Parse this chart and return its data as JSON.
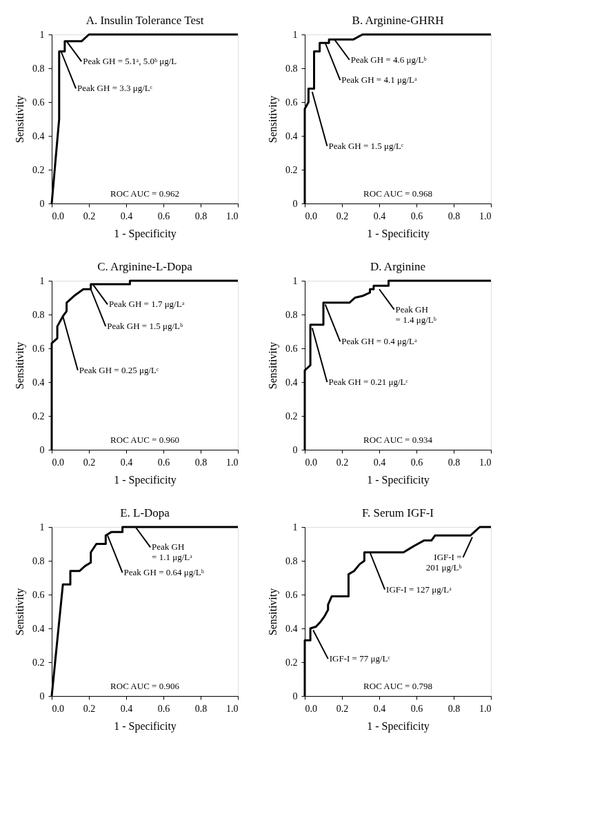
{
  "chart_data": [
    {
      "type": "line",
      "title": "A.  Insulin Tolerance Test",
      "xlabel": "1 - Specificity",
      "ylabel": "Sensitivity",
      "x": [
        0,
        0.04,
        0.04,
        0.07,
        0.07,
        0.16,
        0.2,
        1
      ],
      "series": [
        {
          "color": "#000000",
          "values": [
            0,
            0.5,
            0.9,
            0.9,
            0.96,
            0.96,
            1,
            1
          ]
        }
      ],
      "xlim": [
        0,
        1
      ],
      "ylim": [
        0,
        1
      ],
      "xticks": [
        {
          "value": 0,
          "label": "0.0"
        },
        {
          "value": 0.2,
          "label": "0.2"
        },
        {
          "value": 0.4,
          "label": "0.4"
        },
        {
          "value": 0.6,
          "label": "0.6"
        },
        {
          "value": 0.8,
          "label": "0.8"
        },
        {
          "value": 1,
          "label": "1.0"
        }
      ],
      "yticks": [
        0,
        0.2,
        0.4,
        0.6,
        0.8,
        1
      ],
      "grid": false,
      "annotations": [
        {
          "text": "Peak GH = 5.1ᵃ, 5.0ᵇ μg/L",
          "x": 0.08,
          "y": 0.96
        },
        {
          "text": "Peak GH = 3.3 μg/Lᶜ",
          "x": 0.05,
          "y": 0.9
        },
        "ROC AUC = 0.962"
      ]
    },
    {
      "type": "line",
      "title": "B.  Arginine-GHRH",
      "xlabel": "1 - Specificity",
      "ylabel": "Sensitivity",
      "x": [
        0,
        0,
        0.02,
        0.02,
        0.05,
        0.05,
        0.08,
        0.08,
        0.13,
        0.13,
        0.26,
        0.31,
        1
      ],
      "series": [
        {
          "color": "#000000",
          "values": [
            0,
            0.56,
            0.6,
            0.68,
            0.68,
            0.9,
            0.9,
            0.95,
            0.95,
            0.97,
            0.97,
            1,
            1
          ]
        }
      ],
      "xlim": [
        0,
        1
      ],
      "ylim": [
        0,
        1
      ],
      "xticks": [
        {
          "value": 0,
          "label": "0.0"
        },
        {
          "value": 0.2,
          "label": "0.2"
        },
        {
          "value": 0.4,
          "label": "0.4"
        },
        {
          "value": 0.6,
          "label": "0.6"
        },
        {
          "value": 0.8,
          "label": "0.8"
        },
        {
          "value": 1,
          "label": "1.0"
        }
      ],
      "yticks": [
        0,
        0.2,
        0.4,
        0.6,
        0.8,
        1
      ],
      "grid": false,
      "annotations": [
        {
          "text": "Peak GH = 4.6 μg/Lᵇ",
          "x": 0.16,
          "y": 0.97
        },
        {
          "text": "Peak GH = 4.1 μg/Lᵃ",
          "x": 0.11,
          "y": 0.95
        },
        {
          "text": "Peak GH = 1.5 μg/Lᶜ",
          "x": 0.04,
          "y": 0.66
        },
        "ROC AUC = 0.968"
      ]
    },
    {
      "type": "line",
      "title": "C.  Arginine-L-Dopa",
      "xlabel": "1 - Specificity",
      "ylabel": "Sensitivity",
      "x": [
        0,
        0,
        0.03,
        0.03,
        0.05,
        0.06,
        0.08,
        0.08,
        0.12,
        0.17,
        0.21,
        0.21,
        0.42,
        0.42,
        1
      ],
      "series": [
        {
          "color": "#000000",
          "values": [
            0,
            0.63,
            0.66,
            0.73,
            0.77,
            0.79,
            0.82,
            0.87,
            0.91,
            0.95,
            0.95,
            0.98,
            0.98,
            1,
            1
          ]
        }
      ],
      "xlim": [
        0,
        1
      ],
      "ylim": [
        0,
        1
      ],
      "xticks": [
        {
          "value": 0,
          "label": "0.0"
        },
        {
          "value": 0.2,
          "label": "0.2"
        },
        {
          "value": 0.4,
          "label": "0.4"
        },
        {
          "value": 0.6,
          "label": "0.6"
        },
        {
          "value": 0.8,
          "label": "0.8"
        },
        {
          "value": 1,
          "label": "1.0"
        }
      ],
      "yticks": [
        0,
        0.2,
        0.4,
        0.6,
        0.8,
        1
      ],
      "grid": false,
      "annotations": [
        {
          "text": "Peak GH = 1.7 μg/Lᵃ",
          "x": 0.22,
          "y": 0.98
        },
        {
          "text": "Peak GH = 1.5 μg/Lᵇ",
          "x": 0.21,
          "y": 0.95
        },
        {
          "text": "Peak GH = 0.25 μg/Lᶜ",
          "x": 0.06,
          "y": 0.79
        },
        "ROC AUC = 0.960"
      ]
    },
    {
      "type": "line",
      "title": "D.  Arginine",
      "xlabel": "1 - Specificity",
      "ylabel": "Sensitivity",
      "x": [
        0,
        0,
        0.03,
        0.03,
        0.1,
        0.1,
        0.24,
        0.27,
        0.31,
        0.35,
        0.35,
        0.37,
        0.37,
        0.45,
        0.45,
        1
      ],
      "series": [
        {
          "color": "#000000",
          "values": [
            0,
            0.47,
            0.5,
            0.74,
            0.74,
            0.87,
            0.87,
            0.9,
            0.91,
            0.93,
            0.95,
            0.95,
            0.97,
            0.97,
            1,
            1
          ]
        }
      ],
      "xlim": [
        0,
        1
      ],
      "ylim": [
        0,
        1
      ],
      "xticks": [
        {
          "value": 0,
          "label": "0.0"
        },
        {
          "value": 0.2,
          "label": "0.2"
        },
        {
          "value": 0.4,
          "label": "0.4"
        },
        {
          "value": 0.6,
          "label": "0.6"
        },
        {
          "value": 0.8,
          "label": "0.8"
        },
        {
          "value": 1,
          "label": "1.0"
        }
      ],
      "yticks": [
        0,
        0.2,
        0.4,
        0.6,
        0.8,
        1
      ],
      "grid": false,
      "annotations": [
        {
          "text": "Peak GH\n= 1.4 μg/Lᵇ",
          "x": 0.4,
          "y": 0.95
        },
        {
          "text": "Peak GH = 0.4 μg/Lᵃ",
          "x": 0.11,
          "y": 0.86
        },
        {
          "text": "Peak GH = 0.21 μg/Lᶜ",
          "x": 0.04,
          "y": 0.72
        },
        "ROC AUC = 0.934"
      ]
    },
    {
      "type": "line",
      "title": "E.  L-Dopa",
      "xlabel": "1 - Specificity",
      "ylabel": "Sensitivity",
      "x": [
        0,
        0.06,
        0.1,
        0.1,
        0.15,
        0.18,
        0.21,
        0.21,
        0.24,
        0.29,
        0.29,
        0.32,
        0.38,
        0.38,
        1
      ],
      "series": [
        {
          "color": "#000000",
          "values": [
            0,
            0.66,
            0.66,
            0.74,
            0.74,
            0.77,
            0.79,
            0.85,
            0.9,
            0.9,
            0.95,
            0.97,
            0.97,
            1,
            1
          ]
        }
      ],
      "xlim": [
        0,
        1
      ],
      "ylim": [
        0,
        1
      ],
      "xticks": [
        {
          "value": 0,
          "label": "0.0"
        },
        {
          "value": 0.2,
          "label": "0.2"
        },
        {
          "value": 0.4,
          "label": "0.4"
        },
        {
          "value": 0.6,
          "label": "0.6"
        },
        {
          "value": 0.8,
          "label": "0.8"
        },
        {
          "value": 1,
          "label": "1.0"
        }
      ],
      "yticks": [
        0,
        0.2,
        0.4,
        0.6,
        0.8,
        1
      ],
      "grid": false,
      "annotations": [
        {
          "text": "Peak GH\n= 1.1 μg/Lᵃ",
          "x": 0.45,
          "y": 1
        },
        {
          "text": "Peak GH = 0.64 μg/Lᵇ",
          "x": 0.3,
          "y": 0.95
        },
        "ROC AUC = 0.906"
      ]
    },
    {
      "type": "line",
      "title": "F.  Serum IGF-I",
      "xlabel": "1 - Specificity",
      "ylabel": "Sensitivity",
      "x": [
        0,
        0,
        0.03,
        0.03,
        0.06,
        0.085,
        0.105,
        0.125,
        0.125,
        0.145,
        0.235,
        0.235,
        0.265,
        0.295,
        0.32,
        0.32,
        0.53,
        0.56,
        0.59,
        0.64,
        0.68,
        0.7,
        0.89,
        0.91,
        0.94,
        1
      ],
      "series": [
        {
          "color": "#000000",
          "values": [
            0,
            0.33,
            0.33,
            0.4,
            0.41,
            0.44,
            0.47,
            0.51,
            0.54,
            0.59,
            0.59,
            0.72,
            0.74,
            0.78,
            0.8,
            0.85,
            0.85,
            0.87,
            0.89,
            0.92,
            0.92,
            0.95,
            0.95,
            0.97,
            1,
            1
          ]
        }
      ],
      "xlim": [
        0,
        1
      ],
      "ylim": [
        0,
        1
      ],
      "xticks": [
        {
          "value": 0,
          "label": "0.0"
        },
        {
          "value": 0.2,
          "label": "0.2"
        },
        {
          "value": 0.4,
          "label": "0.4"
        },
        {
          "value": 0.6,
          "label": "0.6"
        },
        {
          "value": 0.8,
          "label": "0.8"
        },
        {
          "value": 1,
          "label": "1.0"
        }
      ],
      "yticks": [
        0,
        0.2,
        0.4,
        0.6,
        0.8,
        1
      ],
      "grid": false,
      "annotations": [
        {
          "text": "IGF-I =\n201 μg/Lᵇ",
          "x": 0.9,
          "y": 0.94
        },
        {
          "text": "IGF-I = 127 μg/Lᵃ",
          "x": 0.35,
          "y": 0.85
        },
        {
          "text": "IGF-I = 77 μg/Lᶜ",
          "x": 0.045,
          "y": 0.39
        },
        "ROC AUC = 0.798"
      ]
    }
  ]
}
